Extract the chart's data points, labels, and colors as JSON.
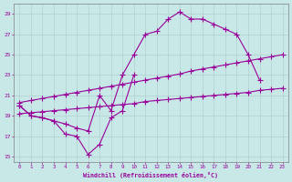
{
  "background_color": "#c8e8e8",
  "grid_color": "#b0d0d0",
  "line_color": "#990099",
  "marker": "+",
  "markersize": 4,
  "linewidth": 0.8,
  "xlabel": "Windchill (Refroidissement éolien,°C)",
  "xlabel_color": "#990099",
  "tick_color": "#990099",
  "xlim": [
    -0.5,
    23.5
  ],
  "ylim": [
    14.5,
    30.0
  ],
  "yticks": [
    15,
    17,
    19,
    21,
    23,
    25,
    27,
    29
  ],
  "xticks": [
    0,
    1,
    2,
    3,
    4,
    5,
    6,
    7,
    8,
    9,
    10,
    11,
    12,
    13,
    14,
    15,
    16,
    17,
    18,
    19,
    20,
    21,
    22,
    23
  ],
  "series_data": {
    "line1_x": [
      0,
      1,
      2,
      3,
      4,
      5,
      6,
      7,
      8,
      9,
      10,
      11,
      12,
      13,
      14,
      15,
      16,
      17,
      18,
      19,
      20,
      21
    ],
    "line1_y": [
      20.0,
      19.0,
      18.8,
      18.5,
      18.2,
      17.8,
      17.5,
      21.0,
      19.5,
      23.0,
      25.0,
      27.0,
      27.3,
      28.5,
      29.2,
      28.5,
      28.5,
      28.0,
      27.5,
      27.0,
      25.0,
      22.5
    ],
    "line2_x": [
      0,
      1,
      2,
      3,
      4,
      5,
      6,
      7,
      8,
      9,
      10
    ],
    "line2_y": [
      20.0,
      19.0,
      18.8,
      18.5,
      17.2,
      17.0,
      15.2,
      16.2,
      18.8,
      19.5,
      23.0
    ],
    "line3_x": [
      0,
      1,
      2,
      3,
      4,
      5,
      6,
      7,
      8,
      9,
      10,
      11,
      12,
      13,
      14,
      15,
      16,
      17,
      18,
      19,
      20,
      21,
      22,
      23
    ],
    "line3_y": [
      20.3,
      20.5,
      20.7,
      20.9,
      21.1,
      21.3,
      21.5,
      21.7,
      21.9,
      22.1,
      22.3,
      22.5,
      22.7,
      22.9,
      23.1,
      23.4,
      23.6,
      23.8,
      24.0,
      24.2,
      24.4,
      24.6,
      24.8,
      25.0
    ],
    "line4_x": [
      0,
      1,
      2,
      3,
      4,
      5,
      6,
      7,
      8,
      9,
      10,
      11,
      12,
      13,
      14,
      15,
      16,
      17,
      18,
      19,
      20,
      21,
      22,
      23
    ],
    "line4_y": [
      19.2,
      19.3,
      19.4,
      19.5,
      19.6,
      19.7,
      19.8,
      19.9,
      20.0,
      20.1,
      20.2,
      20.4,
      20.5,
      20.6,
      20.7,
      20.8,
      20.9,
      21.0,
      21.1,
      21.2,
      21.3,
      21.5,
      21.6,
      21.7
    ]
  }
}
